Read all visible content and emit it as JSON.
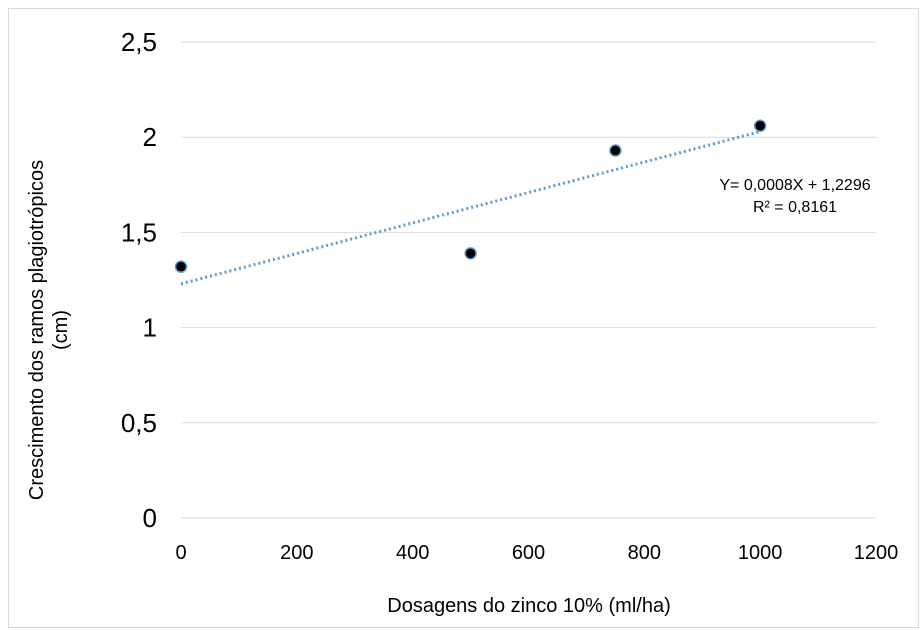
{
  "chart_data": {
    "type": "scatter",
    "title": "",
    "xlabel": "Dosagens do zinco 10% (ml/ha)",
    "ylabel_lines": [
      "Crescimento dos ramos plagiotrópicos",
      "(cm)"
    ],
    "xlim": [
      0,
      1200
    ],
    "ylim": [
      0,
      2.5
    ],
    "x_ticks": [
      0,
      200,
      400,
      600,
      800,
      1000,
      1200
    ],
    "x_tick_labels": [
      "0",
      "200",
      "400",
      "600",
      "800",
      "1000",
      "1200"
    ],
    "y_ticks": [
      0,
      0.5,
      1,
      1.5,
      2,
      2.5
    ],
    "y_tick_labels": [
      "0",
      "0,5",
      "1",
      "1,5",
      "2",
      "2,5"
    ],
    "grid": "horizontal",
    "series": [
      {
        "x": [
          0,
          500,
          750,
          1000
        ],
        "y": [
          1.32,
          1.39,
          1.93,
          2.06
        ],
        "marker_color": "#000000",
        "marker_edge": "#5b9bd5"
      }
    ],
    "trendline": {
      "type": "linear",
      "slope": 0.0008,
      "intercept": 1.2296,
      "x_range": [
        0,
        1000
      ],
      "color": "#5b9bd5",
      "style": "dotted",
      "equation_label": "Y= 0,0008X + 1,2296",
      "r2_label": "R² = 0,8161"
    }
  }
}
